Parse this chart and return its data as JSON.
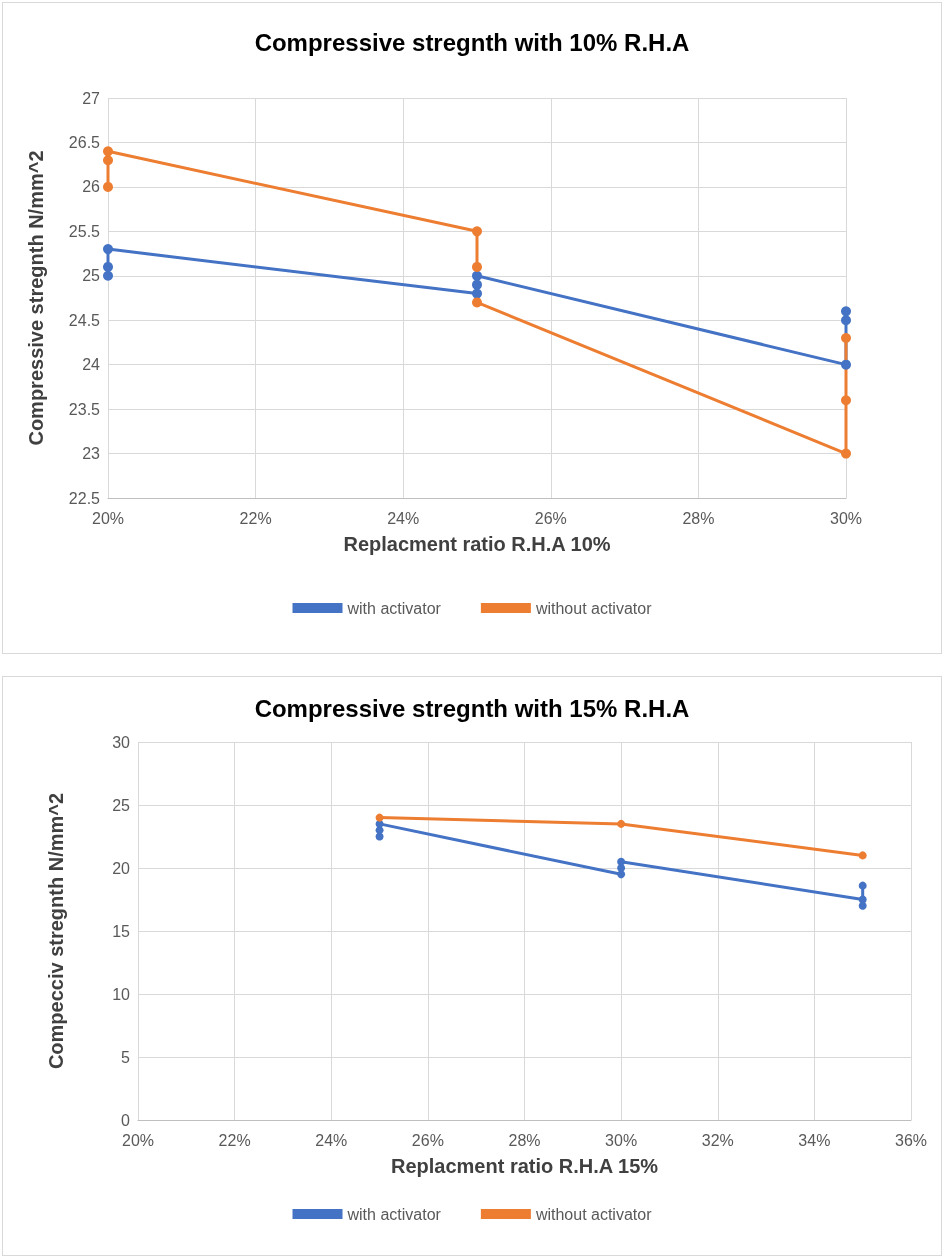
{
  "chart_data": [
    {
      "type": "line",
      "title": "Compressive stregnth with 10% R.H.A",
      "xlabel": "Replacment ratio R.H.A 10%",
      "ylabel": "Compressive stregnth N/mm^2",
      "x": [
        20,
        20,
        20,
        25,
        25,
        25,
        30,
        30,
        30
      ],
      "series": [
        {
          "name": "with activator",
          "color": "#4472c4",
          "values": [
            25.0,
            25.1,
            25.3,
            24.8,
            24.9,
            25.0,
            24.0,
            24.5,
            24.6
          ]
        },
        {
          "name": "without activator",
          "color": "#ed7d31",
          "values": [
            26.0,
            26.3,
            26.4,
            25.5,
            25.1,
            24.7,
            23.0,
            23.6,
            24.3
          ]
        }
      ],
      "xlim": [
        20,
        30
      ],
      "xticks": [
        {
          "value": 20,
          "label": "20%"
        },
        {
          "value": 22,
          "label": "22%"
        },
        {
          "value": 24,
          "label": "24%"
        },
        {
          "value": 26,
          "label": "26%"
        },
        {
          "value": 28,
          "label": "28%"
        },
        {
          "value": 30,
          "label": "30%"
        }
      ],
      "ylim": [
        22.5,
        27
      ],
      "yticks": [
        22.5,
        23,
        23.5,
        24,
        24.5,
        25,
        25.5,
        26,
        26.5,
        27
      ],
      "grid": true,
      "legend": "bottom",
      "marker": "circle",
      "line_style": "solid"
    },
    {
      "type": "line",
      "title": "Compressive stregnth with 15% R.H.A",
      "xlabel": "Replacment ratio R.H.A 15%",
      "ylabel": "Compecciv stregnth N/mm^2",
      "x": [
        25,
        25,
        25,
        30,
        30,
        30,
        35,
        35,
        35
      ],
      "series": [
        {
          "name": "with activator",
          "color": "#4472c4",
          "values": [
            22.5,
            23.0,
            23.5,
            19.5,
            20.0,
            20.5,
            17.5,
            17.0,
            18.6
          ]
        },
        {
          "name": "without activator",
          "color": "#ed7d31",
          "x": [
            25,
            30,
            35
          ],
          "values": [
            24.0,
            23.5,
            21.0
          ]
        }
      ],
      "xlim": [
        20,
        36
      ],
      "xticks": [
        {
          "value": 20,
          "label": "20%"
        },
        {
          "value": 22,
          "label": "22%"
        },
        {
          "value": 24,
          "label": "24%"
        },
        {
          "value": 26,
          "label": "26%"
        },
        {
          "value": 28,
          "label": "28%"
        },
        {
          "value": 30,
          "label": "30%"
        },
        {
          "value": 32,
          "label": "32%"
        },
        {
          "value": 34,
          "label": "34%"
        },
        {
          "value": 36,
          "label": "36%"
        }
      ],
      "ylim": [
        0,
        30
      ],
      "yticks": [
        0,
        5,
        10,
        15,
        20,
        25,
        30
      ],
      "grid": true,
      "legend": "bottom",
      "marker": "circle",
      "line_style": "solid"
    }
  ]
}
